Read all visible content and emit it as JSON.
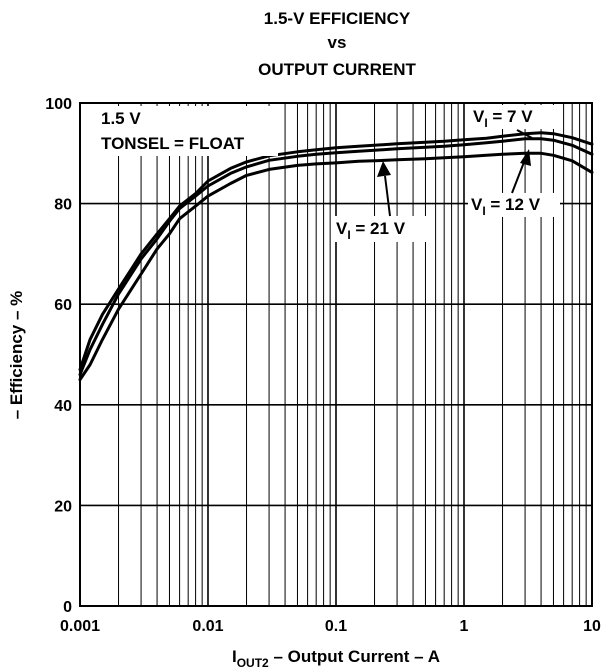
{
  "chart_data": {
    "type": "line",
    "title": [
      "1.5-V EFFICIENCY",
      "vs",
      "OUTPUT CURRENT"
    ],
    "xlabel": {
      "main": "I",
      "sub": "OUT2",
      "rest": " – Output Current – A"
    },
    "ylabel": "– Efficiency – %",
    "x_scale": "log",
    "xlim": [
      0.001,
      10
    ],
    "ylim": [
      0,
      100
    ],
    "x_ticks": [
      {
        "v": 0.001,
        "label": "0.001"
      },
      {
        "v": 0.01,
        "label": "0.01"
      },
      {
        "v": 0.1,
        "label": "0.1"
      },
      {
        "v": 1,
        "label": "1"
      },
      {
        "v": 10,
        "label": "10"
      }
    ],
    "y_ticks": [
      {
        "v": 0,
        "label": "0"
      },
      {
        "v": 20,
        "label": "20"
      },
      {
        "v": 40,
        "label": "40"
      },
      {
        "v": 60,
        "label": "60"
      },
      {
        "v": 80,
        "label": "80"
      },
      {
        "v": 100,
        "label": "100"
      }
    ],
    "grid": true,
    "conditions": [
      "1.5 V",
      "TONSEL = FLOAT"
    ],
    "series": [
      {
        "name": "V_I = 7 V",
        "label": {
          "main": "V",
          "sub": "I",
          "rest": " = 7 V"
        },
        "x": [
          0.001,
          0.0012,
          0.0015,
          0.002,
          0.003,
          0.004,
          0.005,
          0.006,
          0.008,
          0.01,
          0.015,
          0.02,
          0.03,
          0.05,
          0.07,
          0.1,
          0.15,
          0.2,
          0.3,
          0.5,
          0.7,
          1,
          1.5,
          2,
          3,
          4,
          5,
          7,
          10
        ],
        "y": [
          47,
          53,
          58,
          63,
          70,
          74,
          77,
          79.5,
          82,
          84.5,
          87,
          88.3,
          89.5,
          90.3,
          90.7,
          91.1,
          91.4,
          91.6,
          91.9,
          92.2,
          92.4,
          92.7,
          93,
          93.4,
          93.9,
          94.1,
          93.9,
          93.1,
          91.8
        ]
      },
      {
        "name": "V_I = 12 V",
        "label": {
          "main": "V",
          "sub": "I",
          "rest": " = 12 V"
        },
        "x": [
          0.001,
          0.0012,
          0.0015,
          0.002,
          0.003,
          0.004,
          0.005,
          0.006,
          0.008,
          0.01,
          0.015,
          0.02,
          0.03,
          0.05,
          0.07,
          0.1,
          0.15,
          0.2,
          0.3,
          0.5,
          0.7,
          1,
          1.5,
          2,
          3,
          4,
          5,
          7,
          10
        ],
        "y": [
          46,
          51,
          56,
          62,
          69,
          73,
          76.5,
          79,
          81.5,
          83.5,
          86,
          87.3,
          88.6,
          89.4,
          89.8,
          90.1,
          90.4,
          90.6,
          90.9,
          91.2,
          91.4,
          91.7,
          92.1,
          92.4,
          92.9,
          92.9,
          92.6,
          91.6,
          89.8
        ]
      },
      {
        "name": "V_I = 21 V",
        "label": {
          "main": "V",
          "sub": "I",
          "rest": " = 21 V"
        },
        "x": [
          0.001,
          0.0012,
          0.0015,
          0.002,
          0.003,
          0.004,
          0.005,
          0.006,
          0.008,
          0.01,
          0.015,
          0.02,
          0.03,
          0.05,
          0.07,
          0.1,
          0.15,
          0.2,
          0.3,
          0.5,
          0.7,
          1,
          1.5,
          2,
          3,
          4,
          5,
          7,
          10
        ],
        "y": [
          45,
          48,
          53,
          59,
          66,
          71,
          74,
          77,
          79.5,
          81.5,
          84,
          85.6,
          86.8,
          87.6,
          87.9,
          88.1,
          88.4,
          88.5,
          88.7,
          88.9,
          89.1,
          89.3,
          89.6,
          89.8,
          90,
          90,
          89.6,
          88.5,
          86.2
        ]
      }
    ]
  }
}
